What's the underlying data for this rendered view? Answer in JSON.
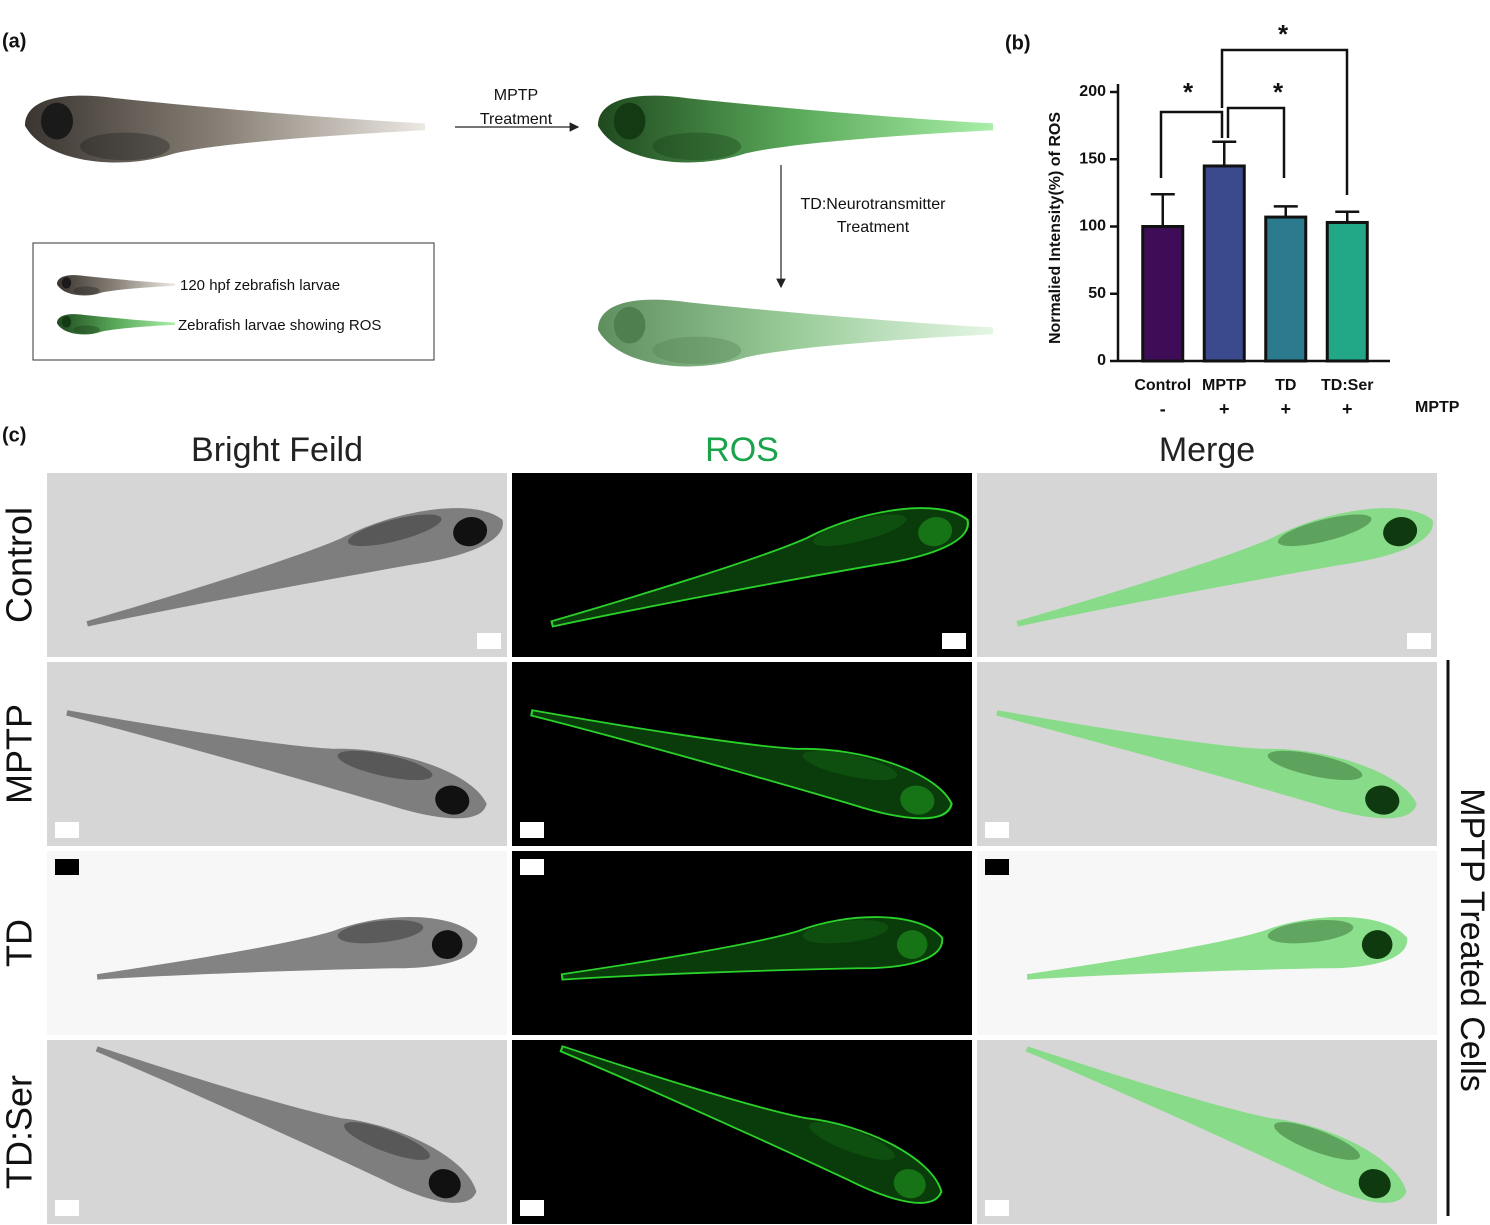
{
  "panel_a": {
    "label": "(a)",
    "arrow1": [
      "MPTP",
      "Treatment"
    ],
    "arrow2": [
      "TD:Neurotransmitter",
      "Treatment"
    ],
    "legend": [
      "120 hpf zebrafish larvae",
      "Zebrafish larvae showing ROS"
    ]
  },
  "chart_data": {
    "type": "bar",
    "panel_label": "(b)",
    "ylabel": "Normalied Intensity(%) of ROS",
    "categories": [
      "Control",
      "MPTP",
      "TD",
      "TD:Ser"
    ],
    "values": [
      100,
      145,
      107,
      103
    ],
    "errors": [
      24,
      18,
      8,
      8
    ],
    "colors": [
      "#3f0d57",
      "#3b4a8c",
      "#2b7a8d",
      "#22a887"
    ],
    "ylim": [
      0,
      200
    ],
    "yticks": [
      0,
      50,
      100,
      150,
      200
    ],
    "treatment_label": "MPTP",
    "treatment": [
      "-",
      "+",
      "+",
      "+"
    ],
    "significance_labels": [
      "*",
      "*",
      "*"
    ]
  },
  "panel_c": {
    "label": "(c)",
    "columns": [
      "Bright Feild",
      "ROS",
      "Merge"
    ],
    "rows": [
      "Control",
      "MPTP",
      "TD",
      "TD:Ser"
    ],
    "side_label": "MPTP Treated Cells"
  }
}
